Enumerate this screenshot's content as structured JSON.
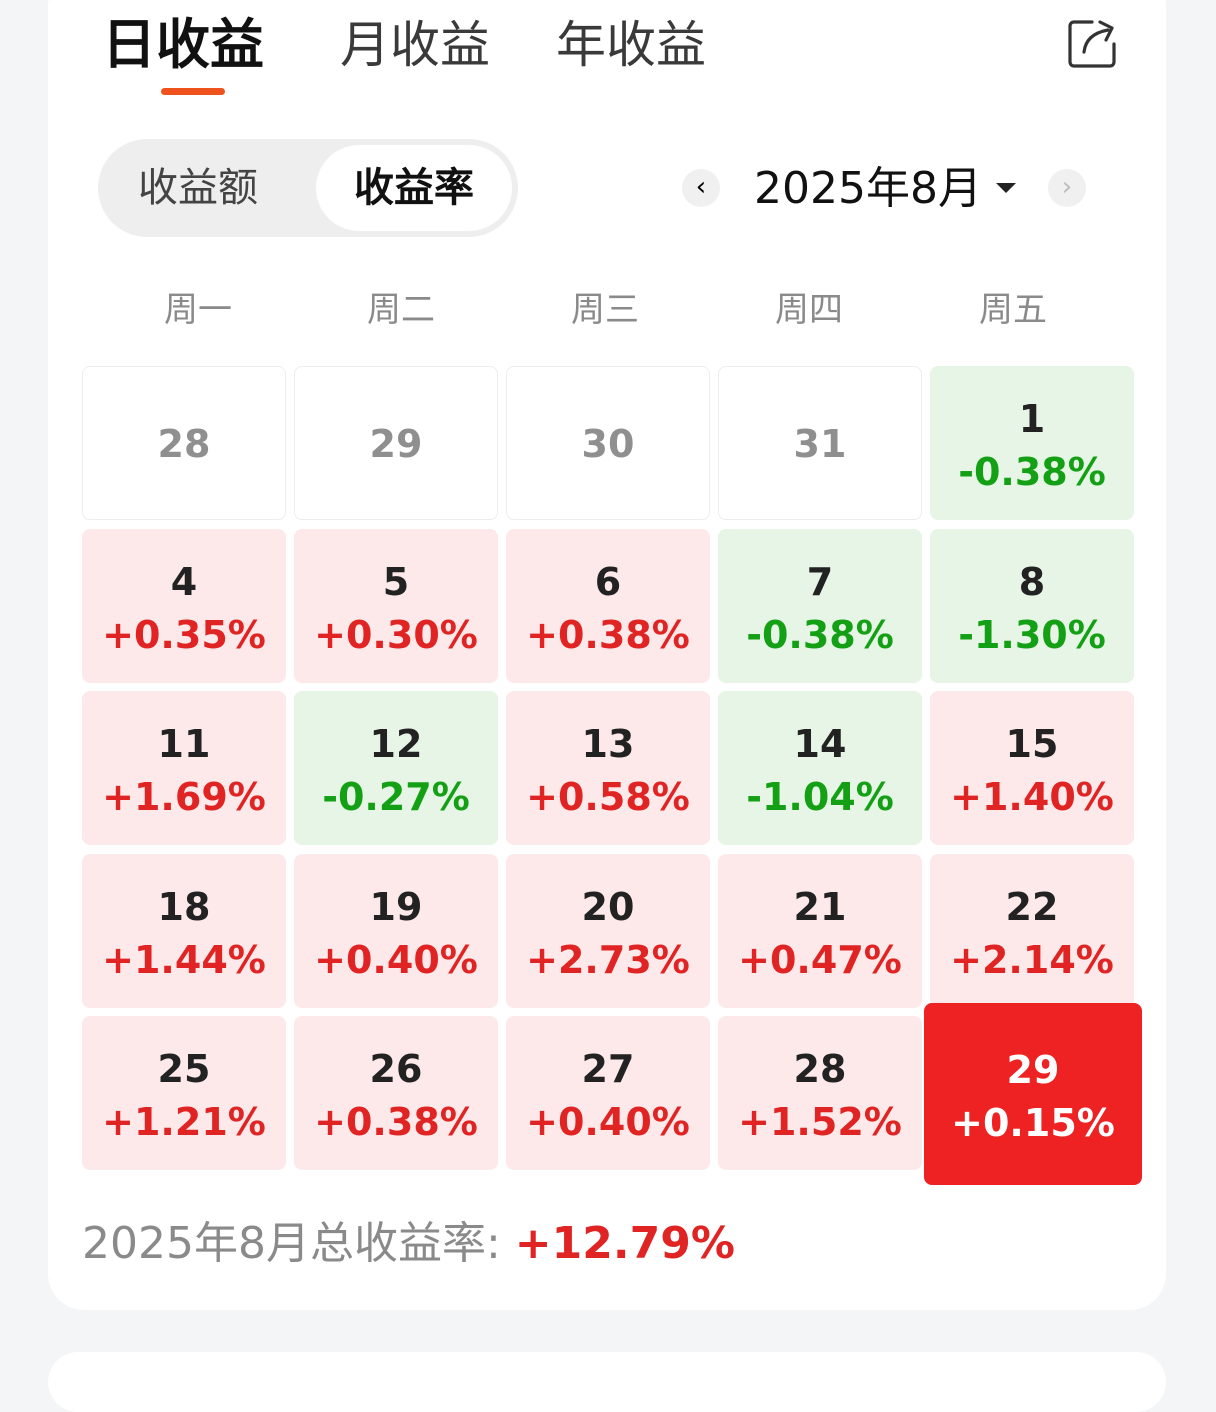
{
  "tabs": [
    "日收益",
    "月收益",
    "年收益"
  ],
  "active_tab": 0,
  "segment": {
    "options": [
      "收益额",
      "收益率"
    ],
    "active": 1
  },
  "month_label": "2025年8月",
  "weekdays": [
    "周一",
    "周二",
    "周三",
    "周四",
    "周五"
  ],
  "calendar": [
    {
      "day": "28",
      "pct": "",
      "state": "empty"
    },
    {
      "day": "29",
      "pct": "",
      "state": "empty"
    },
    {
      "day": "30",
      "pct": "",
      "state": "empty"
    },
    {
      "day": "31",
      "pct": "",
      "state": "empty"
    },
    {
      "day": "1",
      "pct": "-0.38%",
      "state": "down"
    },
    {
      "day": "4",
      "pct": "+0.35%",
      "state": "up"
    },
    {
      "day": "5",
      "pct": "+0.30%",
      "state": "up"
    },
    {
      "day": "6",
      "pct": "+0.38%",
      "state": "up"
    },
    {
      "day": "7",
      "pct": "-0.38%",
      "state": "down"
    },
    {
      "day": "8",
      "pct": "-1.30%",
      "state": "down"
    },
    {
      "day": "11",
      "pct": "+1.69%",
      "state": "up"
    },
    {
      "day": "12",
      "pct": "-0.27%",
      "state": "down"
    },
    {
      "day": "13",
      "pct": "+0.58%",
      "state": "up"
    },
    {
      "day": "14",
      "pct": "-1.04%",
      "state": "down"
    },
    {
      "day": "15",
      "pct": "+1.40%",
      "state": "up"
    },
    {
      "day": "18",
      "pct": "+1.44%",
      "state": "up"
    },
    {
      "day": "19",
      "pct": "+0.40%",
      "state": "up"
    },
    {
      "day": "20",
      "pct": "+2.73%",
      "state": "up"
    },
    {
      "day": "21",
      "pct": "+0.47%",
      "state": "up"
    },
    {
      "day": "22",
      "pct": "+2.14%",
      "state": "up"
    },
    {
      "day": "25",
      "pct": "+1.21%",
      "state": "up"
    },
    {
      "day": "26",
      "pct": "+0.38%",
      "state": "up"
    },
    {
      "day": "27",
      "pct": "+0.40%",
      "state": "up"
    },
    {
      "day": "28",
      "pct": "+1.52%",
      "state": "up"
    },
    {
      "day": "29",
      "pct": "+0.15%",
      "state": "selected"
    }
  ],
  "summary": {
    "label": "2025年8月总收益率: ",
    "value": "+12.79%"
  },
  "icons": {
    "share": "share-icon",
    "prev": "chevron-left-icon",
    "next": "chevron-right-icon",
    "dropdown": "caret-down-icon"
  },
  "colors": {
    "up": "#e02424",
    "down": "#14a014",
    "accent": "#f0521e",
    "selected_bg": "#ee2222"
  }
}
